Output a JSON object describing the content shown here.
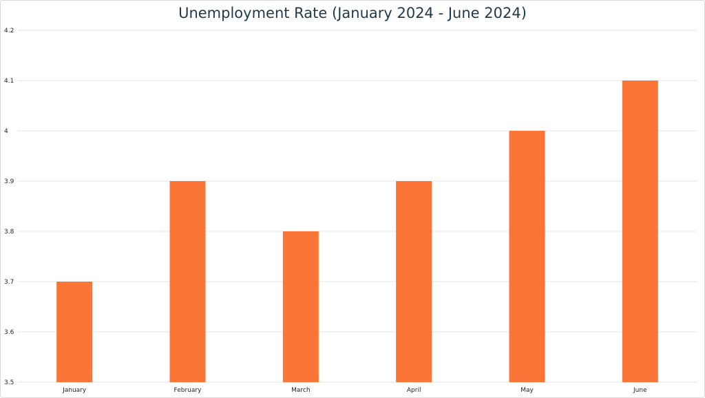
{
  "chart_data": {
    "type": "bar",
    "title": "Unemployment Rate (January 2024 - June 2024)",
    "xlabel": "",
    "ylabel": "",
    "categories": [
      "January",
      "February",
      "March",
      "April",
      "May",
      "June"
    ],
    "values": [
      3.7,
      3.9,
      3.8,
      3.9,
      4.0,
      4.1
    ],
    "ylim": [
      3.5,
      4.2
    ],
    "yticks": [
      "3.5",
      "3.6",
      "3.7",
      "3.8",
      "3.9",
      "4",
      "4.1",
      "4.2"
    ],
    "grid": true,
    "legend": "none",
    "bar_color": "#fb7536",
    "grid_color": "#e3e3e3",
    "title_color": "#1e3a4c"
  }
}
